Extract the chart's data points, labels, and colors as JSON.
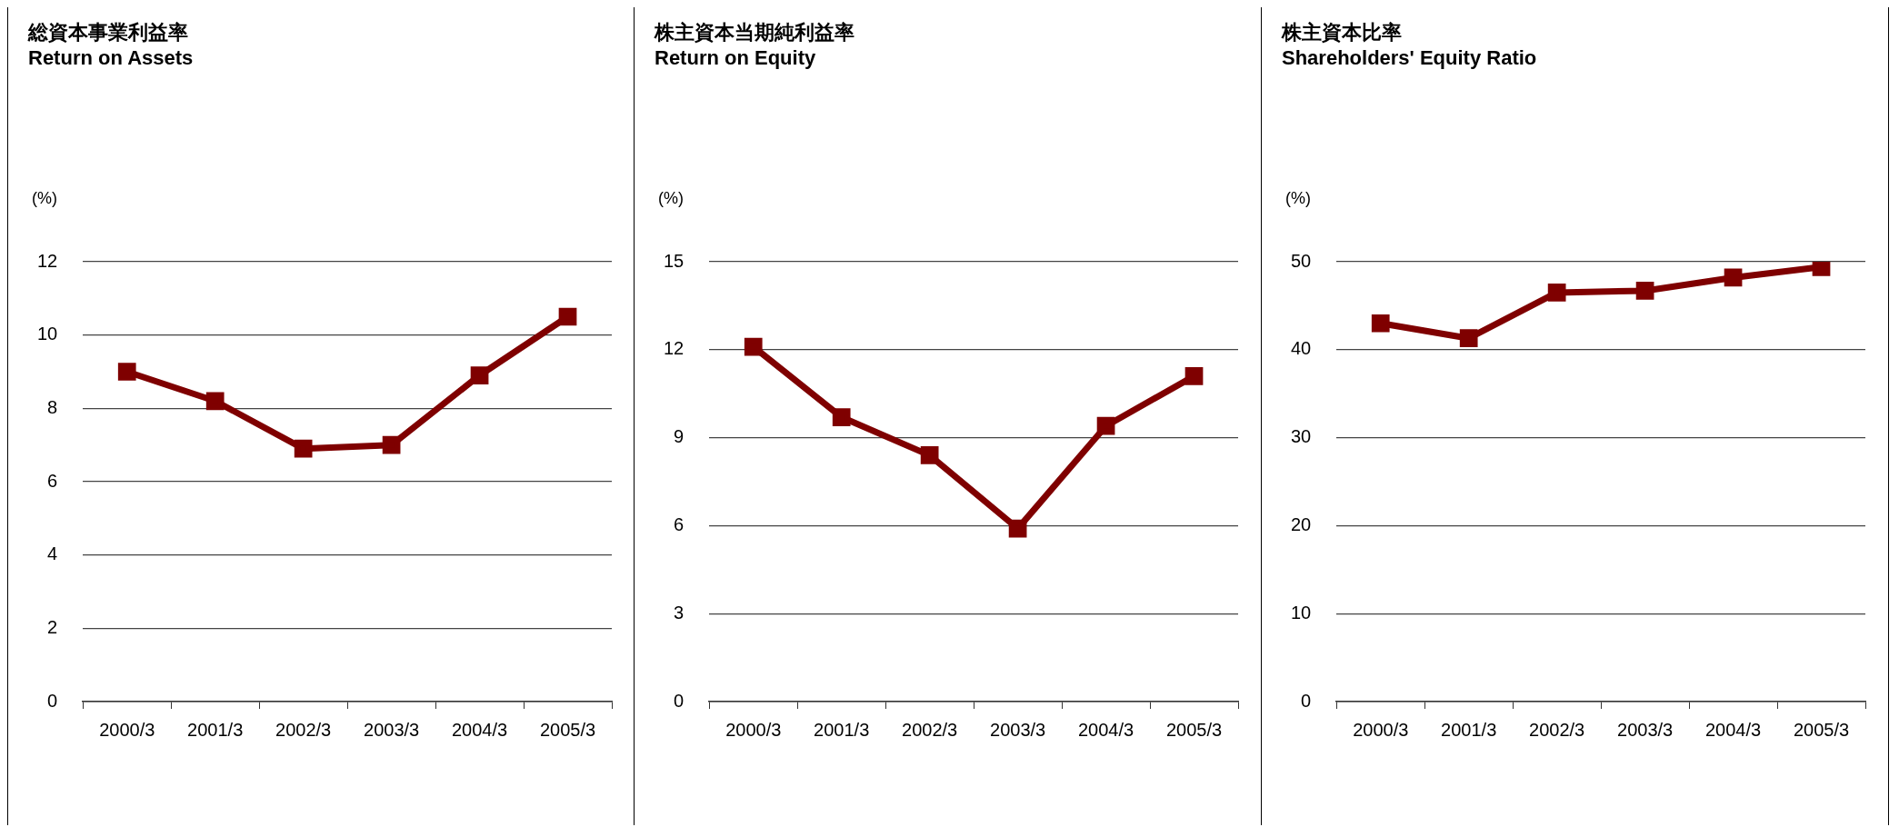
{
  "chart_data": [
    {
      "type": "line",
      "title": "総資本事業利益率",
      "subtitle": "Return on Assets",
      "ylabel": "(%)",
      "categories": [
        "2000/3",
        "2001/3",
        "2002/3",
        "2003/3",
        "2004/3",
        "2005/3"
      ],
      "series": [
        {
          "color": "#7f0000",
          "values": [
            9.0,
            8.2,
            6.9,
            7.0,
            8.9,
            10.5
          ]
        }
      ],
      "ylim": [
        0,
        12
      ],
      "yticks": [
        0,
        2,
        4,
        6,
        8,
        10,
        12
      ],
      "grid": "y",
      "marker": "square"
    },
    {
      "type": "line",
      "title": "株主資本当期純利益率",
      "subtitle": "Return on Equity",
      "ylabel": "(%)",
      "categories": [
        "2000/3",
        "2001/3",
        "2002/3",
        "2003/3",
        "2004/3",
        "2005/3"
      ],
      "series": [
        {
          "color": "#7f0000",
          "values": [
            12.1,
            9.7,
            8.4,
            5.9,
            9.4,
            11.1
          ]
        }
      ],
      "ylim": [
        0,
        15
      ],
      "yticks": [
        0,
        3,
        6,
        9,
        12,
        15
      ],
      "grid": "y",
      "marker": "square"
    },
    {
      "type": "line",
      "title": "株主資本比率",
      "subtitle": "Shareholders' Equity Ratio",
      "ylabel": "(%)",
      "categories": [
        "2000/3",
        "2001/3",
        "2002/3",
        "2003/3",
        "2004/3",
        "2005/3"
      ],
      "series": [
        {
          "color": "#7f0000",
          "values": [
            43.0,
            41.3,
            46.5,
            46.7,
            48.2,
            49.4
          ]
        }
      ],
      "ylim": [
        0,
        50
      ],
      "yticks": [
        0,
        10,
        20,
        30,
        40,
        50
      ],
      "grid": "y",
      "marker": "square"
    }
  ]
}
